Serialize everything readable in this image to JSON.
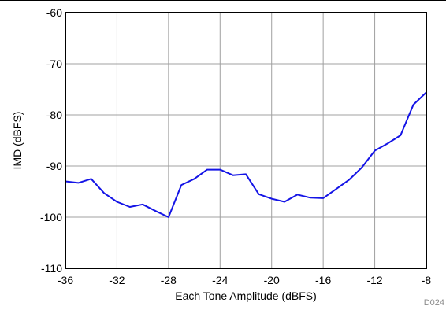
{
  "figure_id": "D024",
  "chart_data": {
    "type": "line",
    "title": "",
    "xlabel": "Each Tone Amplitude (dBFS)",
    "ylabel": "IMD (dBFS)",
    "xlim": [
      -36,
      -8
    ],
    "ylim": [
      -110,
      -60
    ],
    "xticks": [
      -36,
      -32,
      -28,
      -24,
      -20,
      -16,
      -12,
      -8
    ],
    "yticks": [
      -110,
      -100,
      -90,
      -80,
      -70,
      -60
    ],
    "grid": true,
    "legend": "none",
    "series": [
      {
        "color": "#1414e6",
        "x": [
          -36,
          -35,
          -34,
          -33,
          -32,
          -31,
          -30,
          -29,
          -28,
          -27,
          -26,
          -25,
          -24,
          -23,
          -22,
          -21,
          -20,
          -19,
          -18,
          -17,
          -16,
          -15,
          -14,
          -13,
          -12,
          -11,
          -10,
          -9,
          -8
        ],
        "y": [
          -93.0,
          -93.3,
          -92.5,
          -95.3,
          -97.0,
          -98.0,
          -97.5,
          -98.8,
          -100.0,
          -93.7,
          -92.5,
          -90.7,
          -90.7,
          -91.8,
          -91.6,
          -95.5,
          -96.4,
          -97.0,
          -95.6,
          -96.2,
          -96.3,
          -94.5,
          -92.7,
          -90.3,
          -87.0,
          -85.6,
          -84.0,
          -78.0,
          -75.6
        ]
      }
    ]
  }
}
